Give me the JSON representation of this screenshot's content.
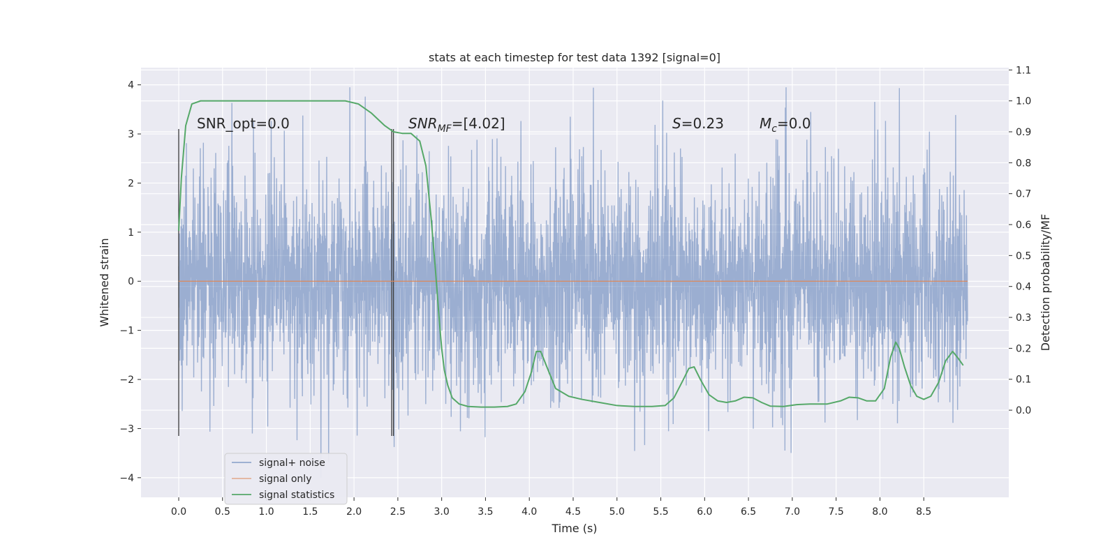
{
  "chart_data": {
    "type": "line",
    "title": "stats at each timestep for test data 1392 [signal=0]",
    "xlabel": "Time (s)",
    "ylabel": "Whitened strain",
    "y2label": "Detection probability/MF",
    "xlim": [
      -0.43,
      9.47
    ],
    "ylim": [
      -4.4,
      4.35
    ],
    "y2lim": [
      -0.2817,
      1.1074
    ],
    "grid": true,
    "background_color": "#eaeaf2",
    "x_ticks": [
      "0.0",
      "0.5",
      "1.0",
      "1.5",
      "2.0",
      "2.5",
      "3.0",
      "3.5",
      "4.0",
      "4.5",
      "5.0",
      "5.5",
      "6.0",
      "6.5",
      "7.0",
      "7.5",
      "8.0",
      "8.5"
    ],
    "y_ticks": [
      "−4",
      "−3",
      "−2",
      "−1",
      "0",
      "1",
      "2",
      "3",
      "4"
    ],
    "y2_ticks": [
      "0.0",
      "0.1",
      "0.2",
      "0.3",
      "0.4",
      "0.5",
      "0.6",
      "0.7",
      "0.8",
      "0.9",
      "1.0",
      "1.1"
    ],
    "annotations": {
      "snr_opt": "SNR_opt=0.0",
      "snr_mf_prefix": "SNR",
      "snr_mf_sub": "MF",
      "snr_mf_value": "=[4.02]",
      "s_sym": "S",
      "s_value": "=0.23",
      "mc_sym": "M",
      "mc_sub": "c",
      "mc_value": "=0.0"
    },
    "vertical_lines": [
      0.0,
      2.43,
      2.45
    ],
    "vertical_line_range": [
      -3.15,
      3.1
    ],
    "legend": {
      "location": "lower-left",
      "entries": [
        "signal+ noise",
        "signal only",
        "signal statistics"
      ]
    },
    "series": [
      {
        "name": "signal+ noise",
        "color": "#4c72b0",
        "x_range": [
          0,
          9.0
        ],
        "samples": 2048,
        "amplitude_range": [
          -4.0,
          3.95
        ],
        "description_values": "whitened Gaussian noise around 0"
      },
      {
        "name": "signal only",
        "color": "#dd8452",
        "x": [
          0.0,
          9.0
        ],
        "y": [
          0.0,
          0.0
        ]
      },
      {
        "name": "signal statistics",
        "color": "#55a868",
        "axis": "right",
        "x": [
          0.0,
          0.03,
          0.08,
          0.15,
          0.25,
          0.5,
          1.0,
          1.5,
          1.9,
          2.05,
          2.2,
          2.35,
          2.45,
          2.55,
          2.65,
          2.75,
          2.82,
          2.88,
          2.93,
          2.97,
          3.0,
          3.03,
          3.07,
          3.12,
          3.2,
          3.3,
          3.45,
          3.6,
          3.75,
          3.85,
          3.95,
          4.02,
          4.08,
          4.13,
          4.2,
          4.3,
          4.45,
          4.6,
          4.8,
          5.0,
          5.2,
          5.4,
          5.55,
          5.65,
          5.75,
          5.82,
          5.88,
          5.95,
          6.05,
          6.15,
          6.25,
          6.35,
          6.45,
          6.55,
          6.65,
          6.75,
          6.9,
          7.05,
          7.2,
          7.4,
          7.55,
          7.65,
          7.75,
          7.85,
          7.95,
          8.05,
          8.12,
          8.18,
          8.22,
          8.28,
          8.35,
          8.42,
          8.5,
          8.58,
          8.67,
          8.75,
          8.83,
          8.9,
          8.95
        ],
        "y": [
          0.58,
          0.75,
          0.92,
          0.99,
          1.0,
          1.0,
          1.0,
          1.0,
          1.0,
          0.99,
          0.96,
          0.92,
          0.9,
          0.895,
          0.895,
          0.87,
          0.79,
          0.62,
          0.45,
          0.3,
          0.2,
          0.13,
          0.08,
          0.04,
          0.02,
          0.012,
          0.01,
          0.01,
          0.012,
          0.02,
          0.06,
          0.12,
          0.19,
          0.19,
          0.14,
          0.07,
          0.045,
          0.035,
          0.025,
          0.015,
          0.012,
          0.012,
          0.015,
          0.04,
          0.095,
          0.135,
          0.14,
          0.1,
          0.05,
          0.03,
          0.025,
          0.03,
          0.042,
          0.04,
          0.025,
          0.013,
          0.012,
          0.018,
          0.02,
          0.02,
          0.03,
          0.042,
          0.04,
          0.03,
          0.03,
          0.07,
          0.17,
          0.22,
          0.2,
          0.14,
          0.08,
          0.045,
          0.035,
          0.045,
          0.09,
          0.16,
          0.19,
          0.165,
          0.145
        ]
      }
    ]
  }
}
